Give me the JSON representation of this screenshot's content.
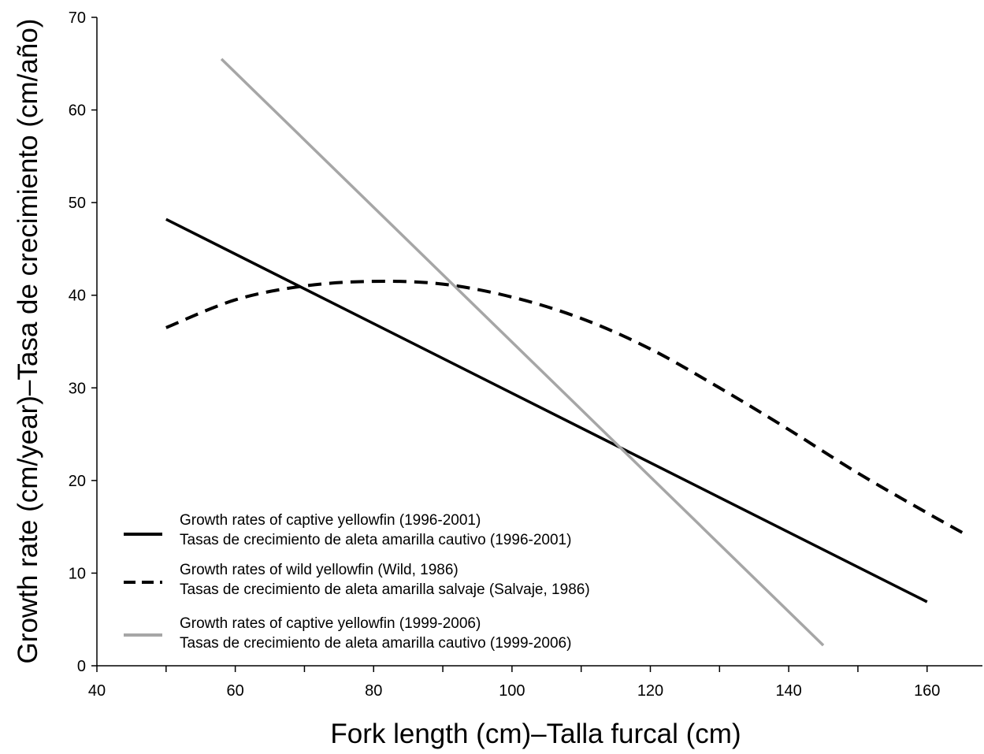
{
  "chart_data": {
    "type": "line",
    "xlabel": "Fork length (cm)–Talla furcal (cm)",
    "ylabel": "Growth rate (cm/year)–Tasa de crecimiento (cm/año)",
    "xlim": [
      40,
      168
    ],
    "ylim": [
      0,
      70
    ],
    "x_ticks": [
      40,
      60,
      80,
      100,
      120,
      140,
      160
    ],
    "y_ticks": [
      0,
      10,
      20,
      30,
      40,
      50,
      60,
      70
    ],
    "grid": false,
    "legend_position": "bottom-left",
    "series": [
      {
        "name": "Growth rates of captive yellowfin (1996-2001)",
        "name_es": "Tasas de crecimiento de aleta amarilla cautivo (1996-2001)",
        "style": "solid",
        "color": "#000000",
        "x": [
          50,
          160
        ],
        "y": [
          48.2,
          6.9
        ]
      },
      {
        "name": "Growth rates of wild yellowfin (Wild, 1986)",
        "name_es": "Tasas de crecimiento de aleta amarilla salvaje (Salvaje, 1986)",
        "style": "dashed",
        "color": "#000000",
        "x": [
          50,
          60,
          70,
          80,
          90,
          100,
          110,
          120,
          130,
          140,
          150,
          160,
          166
        ],
        "y": [
          36.5,
          39.5,
          41.0,
          41.5,
          41.2,
          39.8,
          37.5,
          34.2,
          30.0,
          25.5,
          20.8,
          16.5,
          14.0
        ]
      },
      {
        "name": "Growth rates of captive yellowfin (1999-2006)",
        "name_es": "Tasas de crecimiento de aleta amarilla cautivo (1999-2006)",
        "style": "solid",
        "color": "#a6a6a6",
        "x": [
          58,
          145
        ],
        "y": [
          65.5,
          2.2
        ]
      }
    ]
  }
}
